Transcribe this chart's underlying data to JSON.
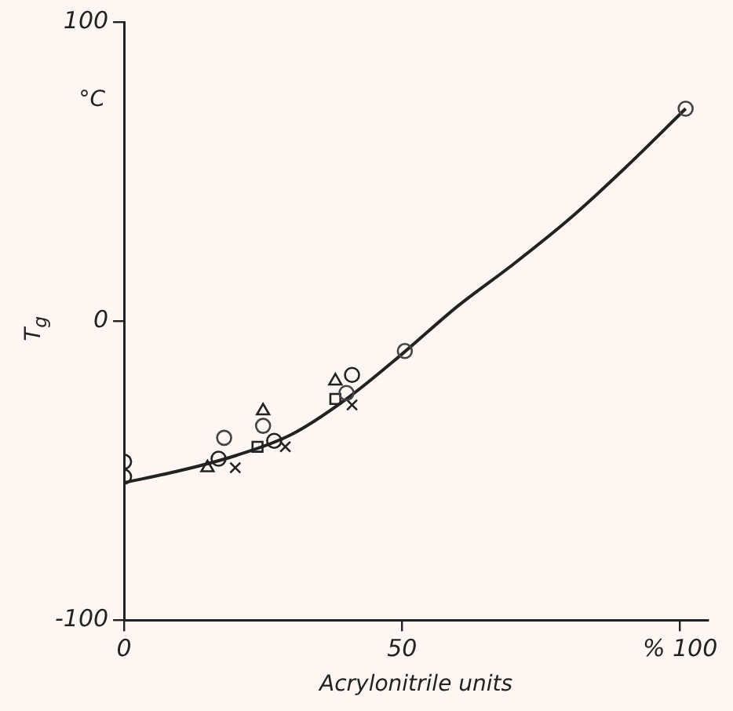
{
  "chart_data": {
    "type": "scatter",
    "xlabel": "Acrylonitrile units",
    "ylabel": "T$_{g}$",
    "annotations": [
      "°C"
    ],
    "xlim": [
      0,
      105
    ],
    "xticks": [
      0,
      50,
      {
        "value": 100,
        "label": "% 100"
      }
    ],
    "ylim": [
      -100,
      100
    ],
    "yticks": [
      -100,
      0,
      100
    ],
    "grid": false,
    "legend": false,
    "series": [
      {
        "marker": "circle",
        "color": "#222222",
        "x": [
          0,
          0,
          17,
          27,
          41
        ],
        "values": [
          -47,
          -52,
          -46,
          -40,
          -18
        ]
      },
      {
        "marker": "circle",
        "color": "#444444",
        "x": [
          18,
          25,
          40,
          50.5,
          101
        ],
        "values": [
          -39,
          -35,
          -24,
          -10,
          71
        ]
      },
      {
        "marker": "triangle",
        "color": "#222222",
        "x": [
          15,
          25,
          38
        ],
        "values": [
          -49,
          -30,
          -20
        ]
      },
      {
        "marker": "square",
        "color": "#222222",
        "x": [
          24,
          38
        ],
        "values": [
          -42,
          -26
        ]
      },
      {
        "marker": "cross",
        "color": "#222222",
        "x": [
          20,
          29,
          41
        ],
        "values": [
          -49,
          -42,
          -28
        ]
      },
      {
        "type": "line",
        "marker": "none",
        "line_style": "solid",
        "color": "#222222",
        "x": [
          0,
          10,
          20,
          30,
          40,
          50,
          60,
          70,
          80,
          90,
          101
        ],
        "values": [
          -54,
          -50,
          -45,
          -38,
          -26,
          -11,
          5,
          19,
          34,
          51,
          71
        ]
      }
    ]
  }
}
